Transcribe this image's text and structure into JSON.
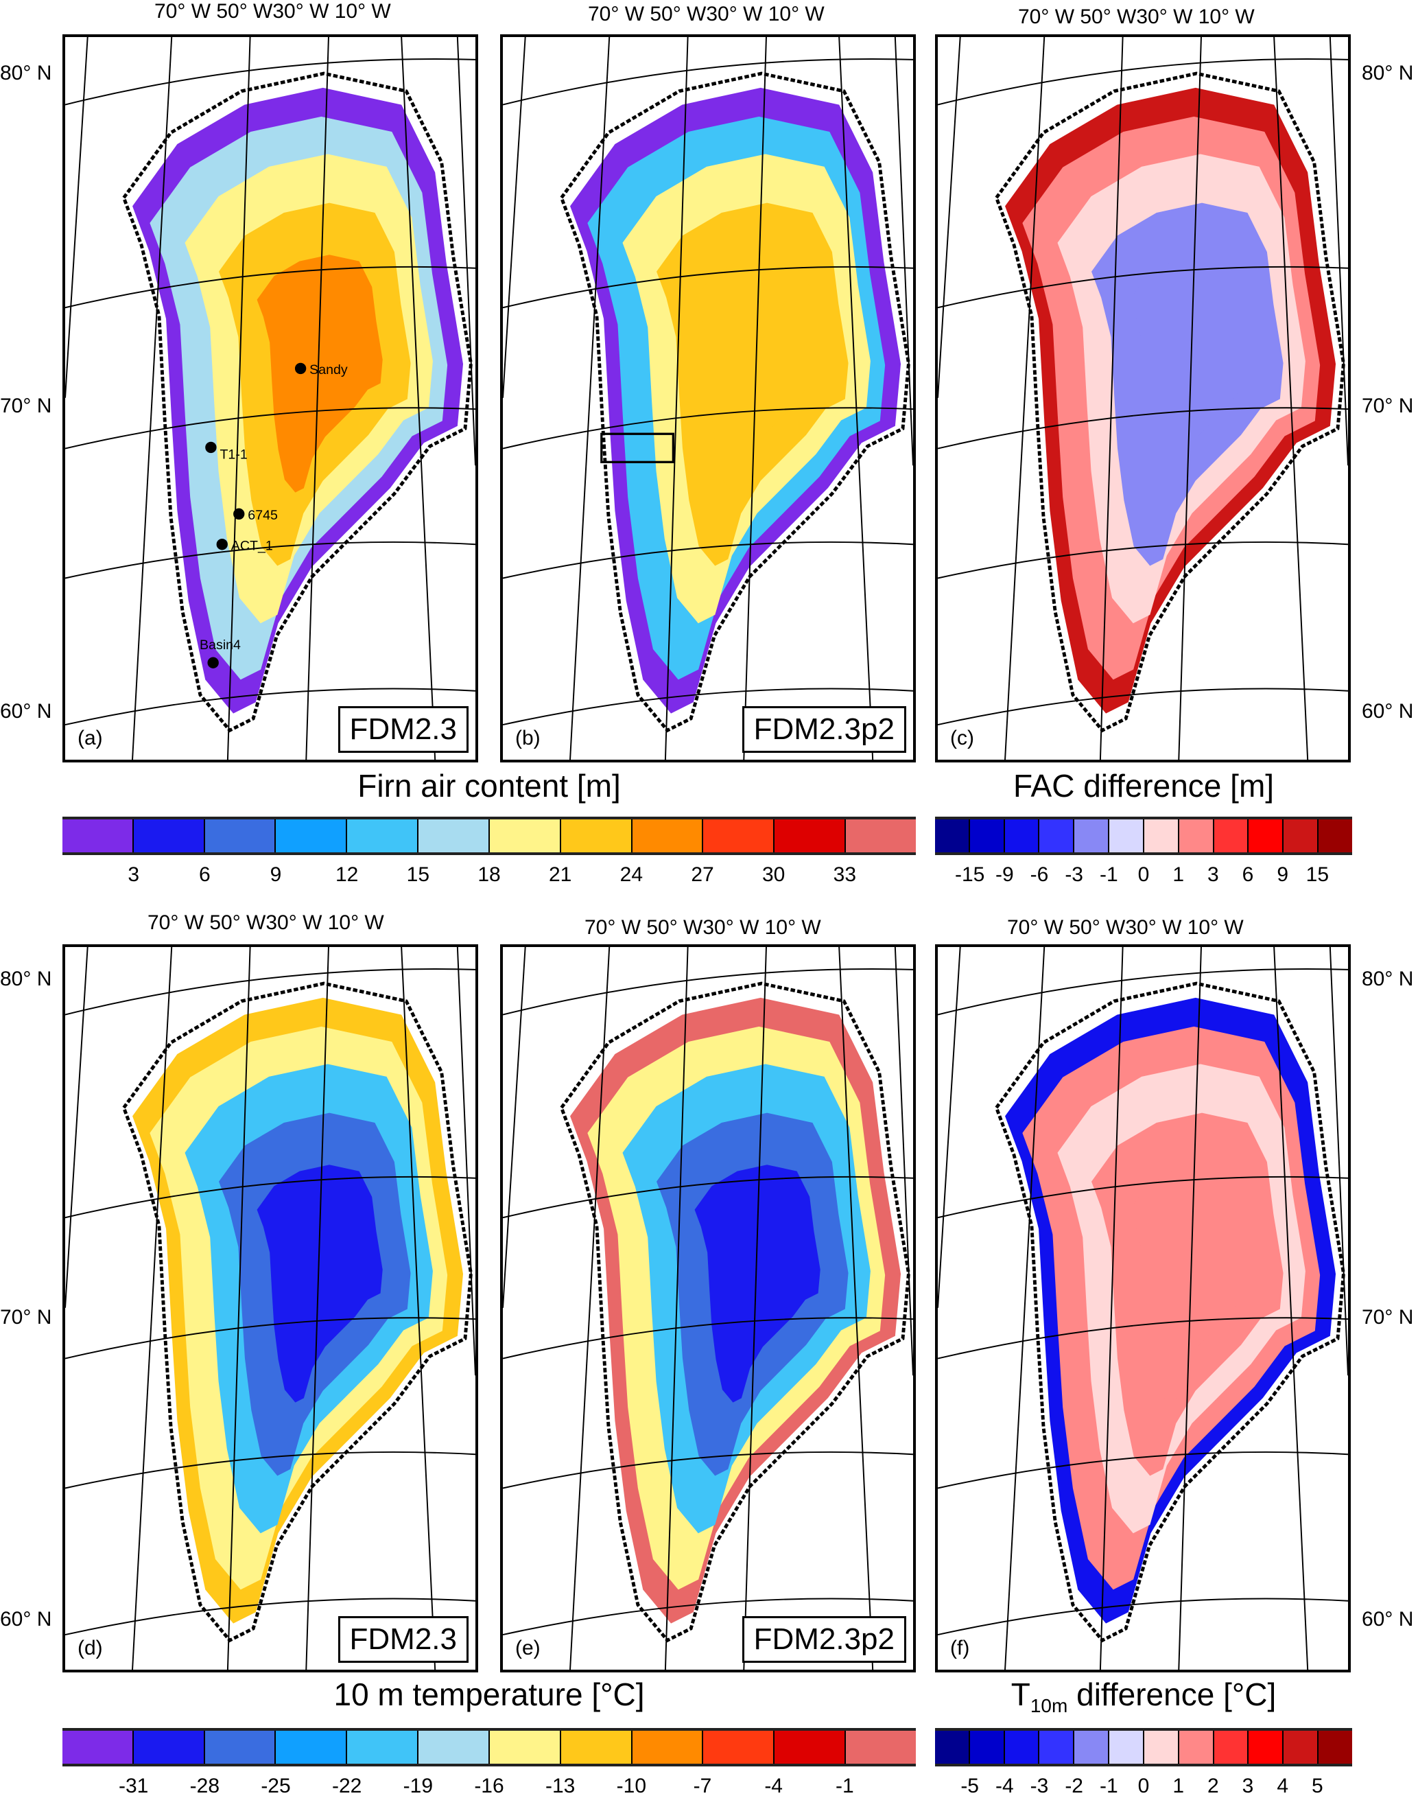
{
  "lon_labels": "70° W 50° W30° W 10° W",
  "lat_labels": {
    "n80": "80° N",
    "n70": "70° N",
    "n60": "60° N"
  },
  "panels": [
    {
      "id": "a",
      "label": "(a)",
      "model": "FDM2.3",
      "zone_colors": [
        "#7d2be8",
        "#a8dcf0",
        "#fff48a",
        "#ffc81a",
        "#ff8a00"
      ]
    },
    {
      "id": "b",
      "label": "(b)",
      "model": "FDM2.3p2",
      "zone_colors": [
        "#7d2be8",
        "#40c4f8",
        "#fff48a",
        "#ffc81a",
        "#ffc81a"
      ]
    },
    {
      "id": "c",
      "label": "(c)",
      "model": "",
      "zone_colors": [
        "#cc1616",
        "#ff8888",
        "#ffd8d8",
        "#8888f5",
        "#8888f5"
      ]
    },
    {
      "id": "d",
      "label": "(d)",
      "model": "FDM2.3",
      "zone_colors": [
        "#ffc81a",
        "#fff48a",
        "#40c4f8",
        "#3a6de0",
        "#1a1af0"
      ]
    },
    {
      "id": "e",
      "label": "(e)",
      "model": "FDM2.3p2",
      "zone_colors": [
        "#e86868",
        "#fff48a",
        "#40c4f8",
        "#3a6de0",
        "#1a1af0"
      ]
    },
    {
      "id": "f",
      "label": "(f)",
      "model": "",
      "zone_colors": [
        "#1010ee",
        "#ff8888",
        "#ffd8d8",
        "#ff8888",
        "#ff8888"
      ]
    }
  ],
  "stations": [
    {
      "name": "Sandy"
    },
    {
      "name": "T1-1"
    },
    {
      "name": "6745"
    },
    {
      "name": "ACT_1"
    },
    {
      "name": "Basin4"
    }
  ],
  "colorbars": {
    "fac": {
      "title": "Firn air content [m]",
      "colors": [
        "#7d2be8",
        "#1a1af0",
        "#3a6de0",
        "#10a0ff",
        "#40c4f8",
        "#a8dcf0",
        "#fff48a",
        "#ffc81a",
        "#ff8a00",
        "#ff3a10",
        "#dd0000",
        "#e86868"
      ],
      "ticks": [
        "3",
        "6",
        "9",
        "12",
        "15",
        "18",
        "21",
        "24",
        "27",
        "30",
        "33"
      ]
    },
    "fac_diff": {
      "title": "FAC difference [m]",
      "colors": [
        "#00008f",
        "#0000cc",
        "#1010ee",
        "#3333ff",
        "#8888f5",
        "#d8d8ff",
        "#ffd8d8",
        "#ff8888",
        "#ff3333",
        "#ff0000",
        "#cc1616",
        "#990000"
      ],
      "ticks": [
        "-15",
        "-9",
        "-6",
        "-3",
        "-1",
        "0",
        "1",
        "3",
        "6",
        "9",
        "15"
      ]
    },
    "t10": {
      "title": "10 m  temperature [°C]",
      "colors": [
        "#7d2be8",
        "#1a1af0",
        "#3a6de0",
        "#10a0ff",
        "#40c4f8",
        "#a8dcf0",
        "#fff48a",
        "#ffc81a",
        "#ff8a00",
        "#ff3a10",
        "#dd0000",
        "#e86868"
      ],
      "ticks": [
        "-31",
        "-28",
        "-25",
        "-22",
        "-19",
        "-16",
        "-13",
        "-10",
        "-7",
        "-4",
        "-1"
      ]
    },
    "t10_diff": {
      "title_main": "T",
      "title_sub": "10m",
      "title_rest": " difference [°C]",
      "colors": [
        "#00008f",
        "#0000cc",
        "#1010ee",
        "#3333ff",
        "#8888f5",
        "#d8d8ff",
        "#ffd8d8",
        "#ff8888",
        "#ff3333",
        "#ff0000",
        "#cc1616",
        "#990000"
      ],
      "ticks": [
        "-5",
        "-4",
        "-3",
        "-2",
        "-1",
        "0",
        "1",
        "2",
        "3",
        "4",
        "5"
      ]
    }
  }
}
